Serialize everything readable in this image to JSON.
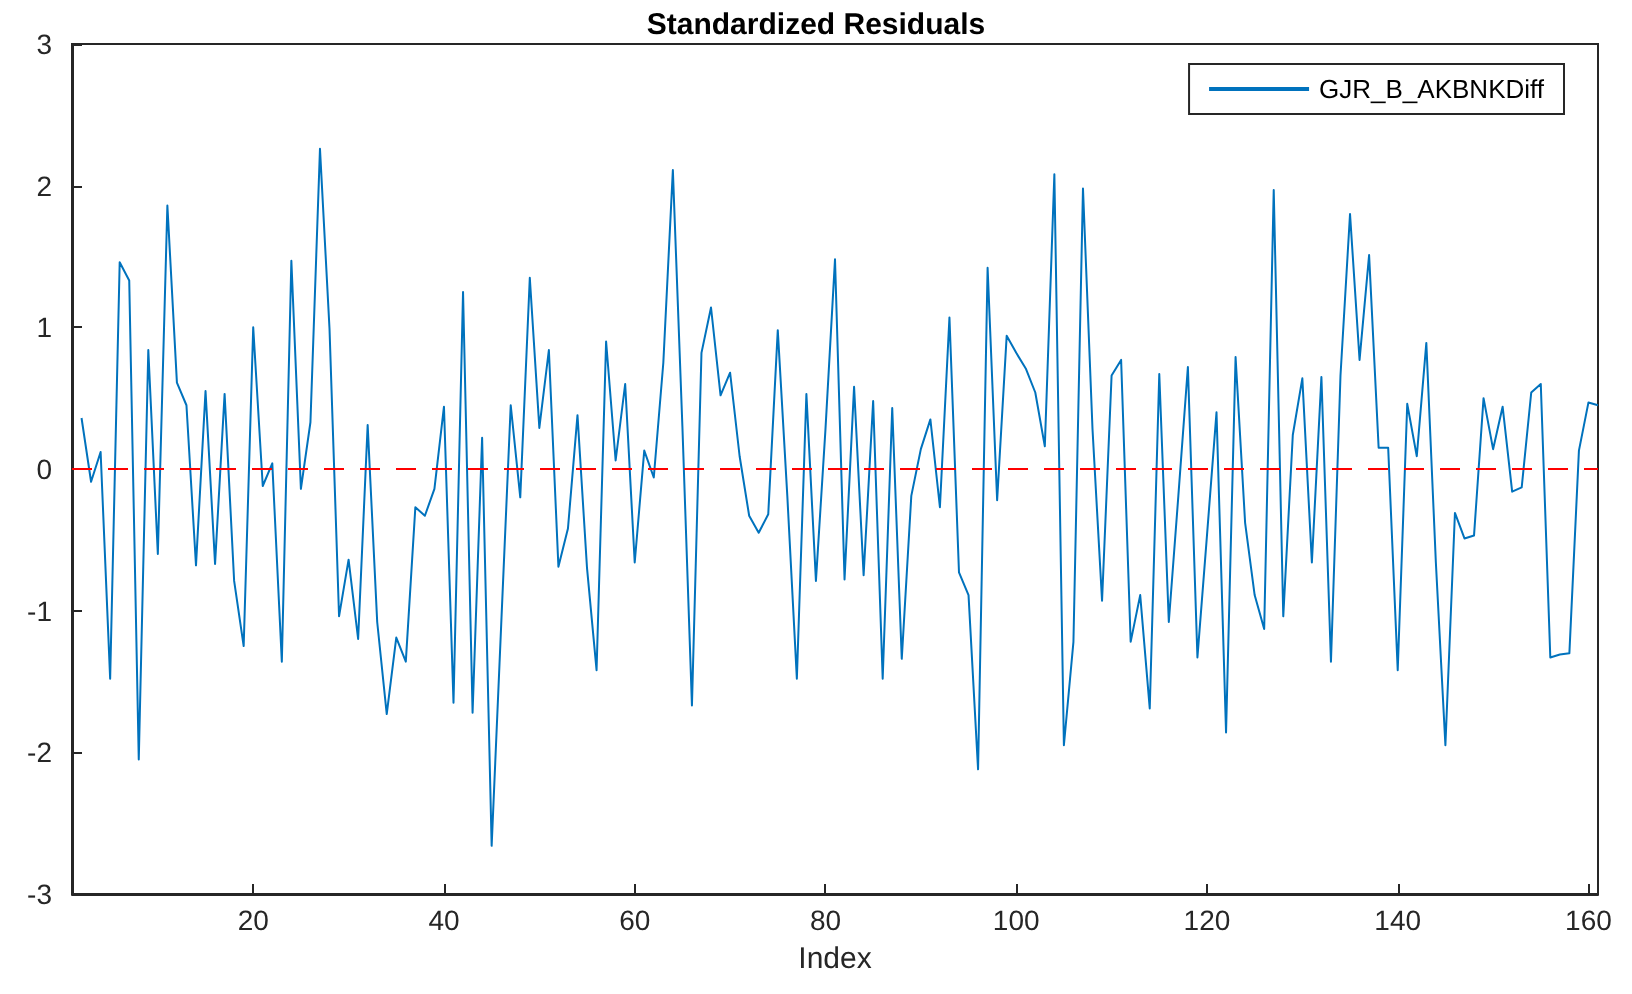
{
  "chart_data": {
    "type": "line",
    "title": "Standardized Residuals",
    "xlabel": "Index",
    "x": [
      2,
      3,
      4,
      5,
      6,
      7,
      8,
      9,
      10,
      11,
      12,
      13,
      14,
      15,
      16,
      17,
      18,
      19,
      20,
      21,
      22,
      23,
      24,
      25,
      26,
      27,
      28,
      29,
      30,
      31,
      32,
      33,
      34,
      35,
      36,
      37,
      38,
      39,
      40,
      41,
      42,
      43,
      44,
      45,
      46,
      47,
      48,
      49,
      50,
      51,
      52,
      53,
      54,
      55,
      56,
      57,
      58,
      59,
      60,
      61,
      62,
      63,
      64,
      65,
      66,
      67,
      68,
      69,
      70,
      71,
      72,
      73,
      74,
      75,
      76,
      77,
      78,
      79,
      80,
      81,
      82,
      83,
      84,
      85,
      86,
      87,
      88,
      89,
      90,
      91,
      92,
      93,
      94,
      95,
      96,
      97,
      98,
      99,
      100,
      101,
      102,
      103,
      104,
      105,
      106,
      107,
      108,
      109,
      110,
      111,
      112,
      113,
      114,
      115,
      116,
      117,
      118,
      119,
      120,
      121,
      122,
      123,
      124,
      125,
      126,
      127,
      128,
      129,
      130,
      131,
      132,
      133,
      134,
      135,
      136,
      137,
      138,
      139,
      140,
      141,
      142,
      143,
      144,
      145,
      146,
      147,
      148,
      149,
      150,
      151,
      152,
      153,
      154,
      155,
      156,
      157,
      158,
      159,
      160,
      161
    ],
    "series": [
      {
        "name": "GJR_B_AKBNKDiff",
        "color": "#0072bd",
        "values": [
          0.36,
          -0.09,
          0.12,
          -1.48,
          1.46,
          1.33,
          -2.05,
          0.84,
          -0.6,
          1.86,
          0.61,
          0.45,
          -0.68,
          0.55,
          -0.67,
          0.53,
          -0.79,
          -1.25,
          1.0,
          -0.12,
          0.04,
          -1.36,
          1.47,
          -0.14,
          0.33,
          2.26,
          0.99,
          -1.04,
          -0.64,
          -1.2,
          0.31,
          -1.08,
          -1.73,
          -1.19,
          -1.36,
          -0.27,
          -0.33,
          -0.14,
          0.44,
          -1.65,
          1.25,
          -1.72,
          0.22,
          -2.66,
          -1.1,
          0.45,
          -0.2,
          1.35,
          0.29,
          0.84,
          -0.69,
          -0.42,
          0.38,
          -0.7,
          -1.42,
          0.9,
          0.06,
          0.6,
          -0.66,
          0.13,
          -0.06,
          0.75,
          2.11,
          0.3,
          -1.67,
          0.82,
          1.14,
          0.52,
          0.68,
          0.09,
          -0.33,
          -0.45,
          -0.32,
          0.98,
          -0.19,
          -1.48,
          0.53,
          -0.79,
          0.28,
          1.48,
          -0.78,
          0.58,
          -0.75,
          0.48,
          -1.48,
          0.43,
          -1.34,
          -0.19,
          0.14,
          0.35,
          -0.27,
          1.07,
          -0.73,
          -0.89,
          -2.12,
          1.42,
          -0.22,
          0.94,
          0.82,
          0.71,
          0.54,
          0.16,
          2.08,
          -1.95,
          -1.22,
          1.98,
          0.28,
          -0.93,
          0.66,
          0.77,
          -1.22,
          -0.89,
          -1.69,
          0.67,
          -1.08,
          -0.19,
          0.72,
          -1.33,
          -0.47,
          0.4,
          -1.86,
          0.79,
          -0.38,
          -0.89,
          -1.13,
          1.97,
          -1.04,
          0.24,
          0.64,
          -0.66,
          0.65,
          -1.36,
          0.66,
          1.8,
          0.77,
          1.51,
          0.15,
          0.15,
          -1.42,
          0.46,
          0.09,
          0.89,
          -0.66,
          -1.95,
          -0.31,
          -0.49,
          -0.47,
          0.5,
          0.14,
          0.44,
          -0.16,
          -0.13,
          0.54,
          0.6,
          -1.33,
          -1.31,
          -1.3,
          0.13,
          0.47,
          0.45
        ]
      }
    ],
    "ref_lines": [
      {
        "axis": "y",
        "value": 0,
        "color": "#ff0000",
        "line_style": "dashed"
      }
    ],
    "xlim": [
      1,
      161
    ],
    "xticks": [
      20,
      40,
      60,
      80,
      100,
      120,
      140,
      160
    ],
    "ylim": [
      -3,
      3
    ],
    "yticks": [
      -3,
      -2,
      -1,
      0,
      1,
      2,
      3
    ],
    "legend": "top right",
    "grid": false,
    "marker": "none",
    "line_style": "solid"
  }
}
